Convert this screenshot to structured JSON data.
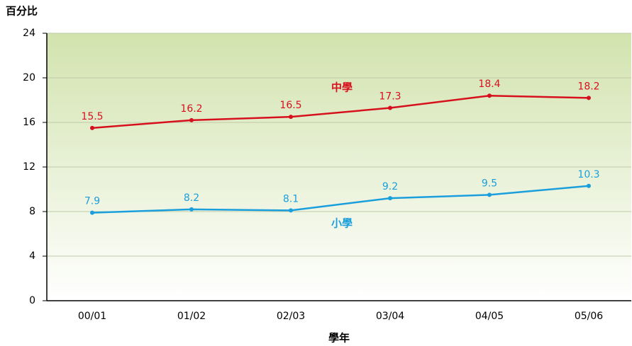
{
  "chart_data": {
    "type": "line",
    "y_axis_label": "百分比",
    "x_axis_label": "學年",
    "categories": [
      "00/01",
      "01/02",
      "02/03",
      "03/04",
      "04/05",
      "05/06"
    ],
    "series": [
      {
        "name": "中學",
        "color": "#d7101e",
        "values": [
          15.5,
          16.2,
          16.5,
          17.3,
          18.4,
          18.2
        ]
      },
      {
        "name": "小學",
        "color": "#1a9fdc",
        "values": [
          7.9,
          8.2,
          8.1,
          9.2,
          9.5,
          10.3
        ]
      }
    ],
    "ylim": [
      0,
      24
    ],
    "yticks": [
      0,
      4,
      8,
      12,
      16,
      20,
      24
    ],
    "grid": true
  }
}
